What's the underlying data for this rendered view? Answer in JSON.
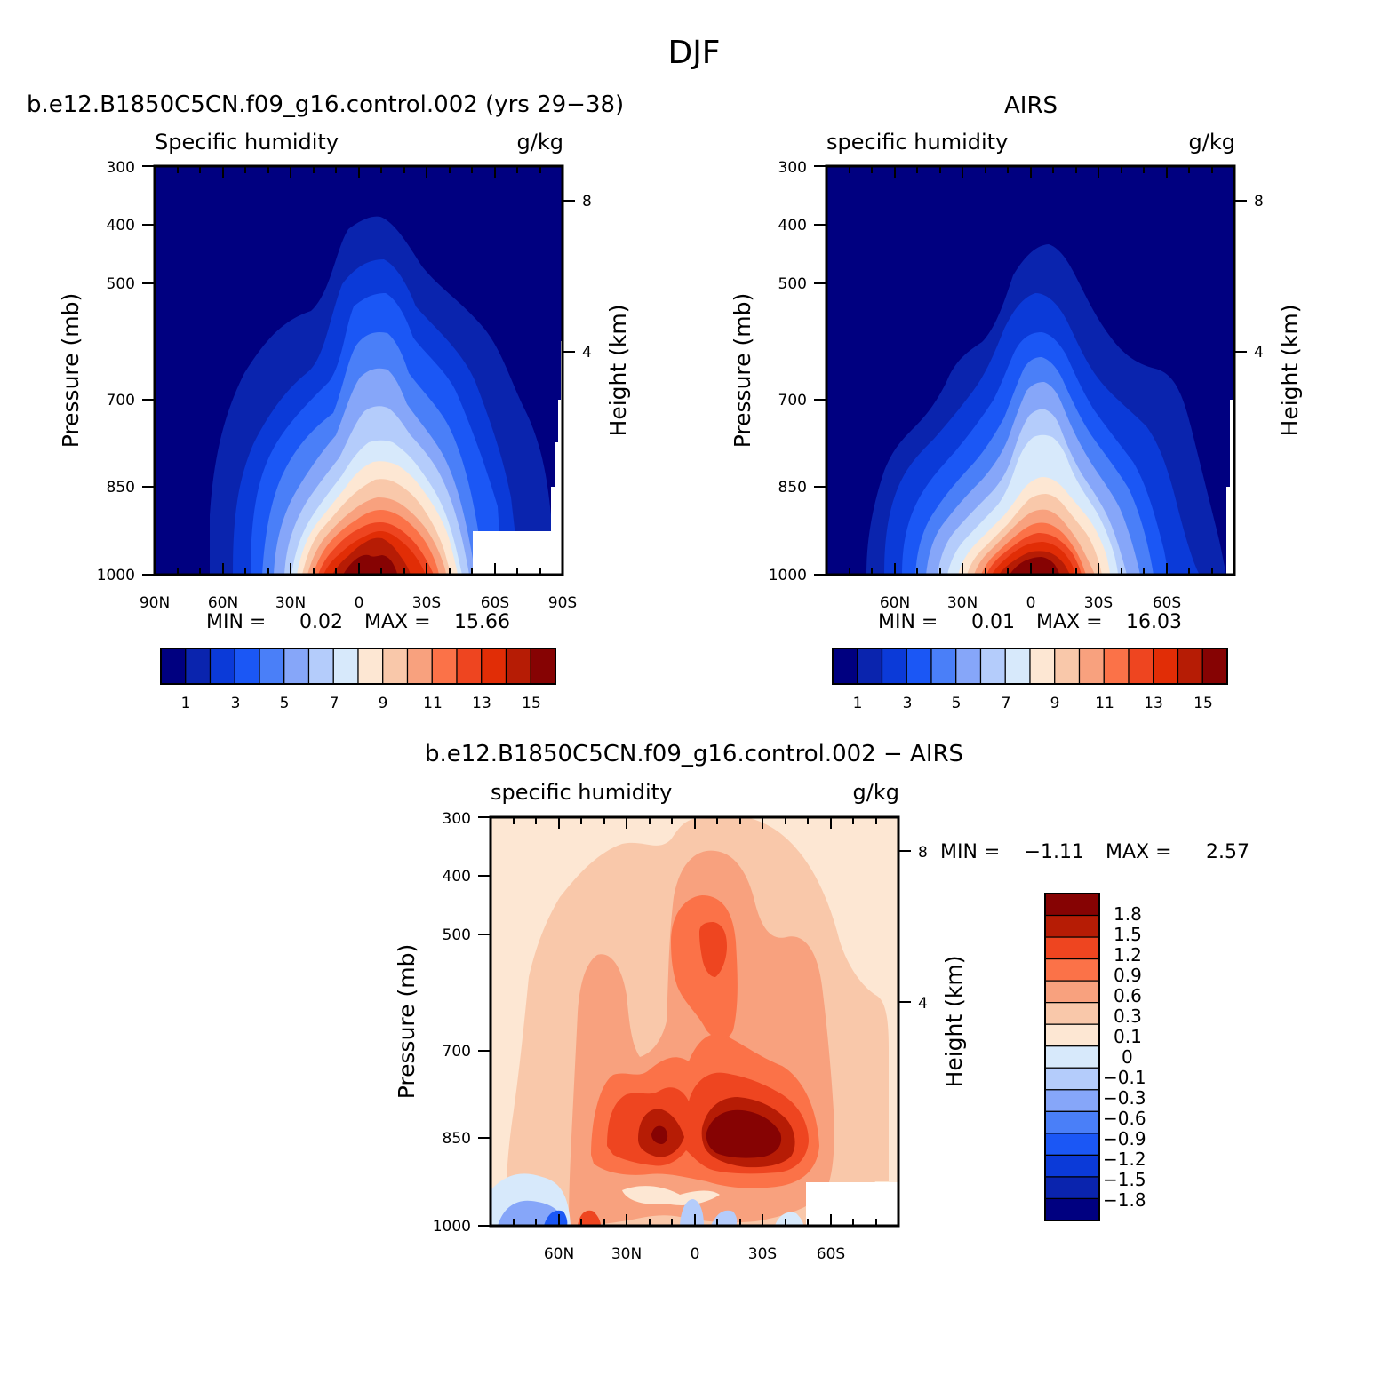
{
  "figure": {
    "title": "DJF"
  },
  "colors": {
    "absolute": [
      "#000080",
      "#0a24ae",
      "#0b3ad8",
      "#1b57f5",
      "#4a7ff8",
      "#86a6f9",
      "#b4ccfb",
      "#d7e9fb",
      "#fde7d3",
      "#f9c8aa",
      "#f8a17e",
      "#fb7248",
      "#ee4520",
      "#e12d06",
      "#b61c05",
      "#860303"
    ],
    "difference": [
      "#000080",
      "#0a24ae",
      "#0b3ad8",
      "#1b57f5",
      "#4a7ff8",
      "#86a6f9",
      "#b4ccfb",
      "#d7e9fb",
      "#fde7d3",
      "#f9c8aa",
      "#f8a17e",
      "#fb7248",
      "#ee4520",
      "#b61c05",
      "#860303"
    ]
  },
  "panels": [
    {
      "id": "model",
      "title": "b.e12.B1850C5CN.f09_g16.control.002 (yrs 29−38)",
      "var_label": "Specific humidity",
      "units": "g/kg",
      "ylabel": "Pressure (mb)",
      "y2label": "Height (km)",
      "yticks": [
        "300",
        "400",
        "500",
        "700",
        "850",
        "1000"
      ],
      "xticks": [
        "90N",
        "60N",
        "30N",
        "0",
        "30S",
        "60S",
        "90S"
      ],
      "y2ticks": [
        "8",
        "4"
      ],
      "min_label": "MIN =",
      "min_value": "0.02",
      "max_label": "MAX =",
      "max_value": "15.66",
      "colorbar_labels": [
        "1",
        "3",
        "5",
        "7",
        "9",
        "11",
        "13",
        "15"
      ]
    },
    {
      "id": "obs",
      "title": "AIRS",
      "var_label": "specific humidity",
      "units": "g/kg",
      "ylabel": "Pressure (mb)",
      "y2label": "Height (km)",
      "yticks": [
        "300",
        "400",
        "500",
        "700",
        "850",
        "1000"
      ],
      "xticks": [
        "60N",
        "30N",
        "0",
        "30S",
        "60S"
      ],
      "y2ticks": [
        "8",
        "4"
      ],
      "min_label": "MIN =",
      "min_value": "0.01",
      "max_label": "MAX =",
      "max_value": "16.03",
      "colorbar_labels": [
        "1",
        "3",
        "5",
        "7",
        "9",
        "11",
        "13",
        "15"
      ]
    },
    {
      "id": "diff",
      "title": "b.e12.B1850C5CN.f09_g16.control.002 − AIRS",
      "var_label": "specific humidity",
      "units": "g/kg",
      "ylabel": "Pressure (mb)",
      "y2label": "Height (km)",
      "yticks": [
        "300",
        "400",
        "500",
        "700",
        "850",
        "1000"
      ],
      "xticks": [
        "60N",
        "30N",
        "0",
        "30S",
        "60S"
      ],
      "y2ticks": [
        "8",
        "4"
      ],
      "min_label": "MIN =",
      "min_value": "−1.11",
      "max_label": "MAX =",
      "max_value": "2.57",
      "colorbar_labels": [
        "1.8",
        "1.5",
        "1.2",
        "0.9",
        "0.6",
        "0.3",
        "0.1",
        "0",
        "−0.1",
        "−0.3",
        "−0.6",
        "−0.9",
        "−1.2",
        "−1.5",
        "−1.8"
      ]
    }
  ],
  "chart_data": [
    {
      "type": "heatmap",
      "title": "b.e12.B1850C5CN.f09_g16.control.002 (yrs 29−38)",
      "subtitle": "Specific humidity",
      "units": "g/kg",
      "xlabel": "",
      "ylabel": "Pressure (mb)",
      "y2label": "Height (km)",
      "x_ticks": [
        "90N",
        "60N",
        "30N",
        "0",
        "30S",
        "60S",
        "90S"
      ],
      "y_ticks": [
        300,
        400,
        500,
        700,
        850,
        1000
      ],
      "y_scale": "log (pressure)",
      "contour_levels": [
        1,
        2,
        3,
        4,
        5,
        6,
        7,
        8,
        9,
        10,
        11,
        12,
        13,
        14,
        15
      ],
      "level_top_pressure_by_latitude": {
        "latitudes": [
          90,
          80,
          70,
          60,
          50,
          40,
          30,
          20,
          10,
          0,
          -10,
          -20,
          -30,
          -40,
          -50,
          -60,
          -70,
          -80,
          -90
        ],
        "q_1": [
          1000,
          1000,
          960,
          820,
          700,
          610,
          580,
          510,
          430,
          400,
          390,
          420,
          470,
          500,
          560,
          600,
          660,
          740,
          850
        ],
        "q_4": [
          1000,
          1000,
          1000,
          1000,
          900,
          800,
          720,
          640,
          560,
          520,
          510,
          540,
          600,
          650,
          710,
          780,
          880,
          1000,
          1000
        ],
        "q_9": [
          1000,
          1000,
          1000,
          1000,
          1000,
          1000,
          1000,
          900,
          800,
          770,
          780,
          830,
          920,
          1000,
          1000,
          1000,
          1000,
          1000,
          1000
        ],
        "q_15": [
          1000,
          1000,
          1000,
          1000,
          1000,
          1000,
          1000,
          1000,
          960,
          940,
          950,
          990,
          1000,
          1000,
          1000,
          1000,
          1000,
          1000,
          1000
        ]
      },
      "min": 0.02,
      "max": 15.66
    },
    {
      "type": "heatmap",
      "title": "AIRS",
      "subtitle": "specific humidity",
      "units": "g/kg",
      "ylabel": "Pressure (mb)",
      "y2label": "Height (km)",
      "x_ticks": [
        "60N",
        "30N",
        "0",
        "30S",
        "60S"
      ],
      "y_ticks": [
        300,
        400,
        500,
        700,
        850,
        1000
      ],
      "contour_levels": [
        1,
        2,
        3,
        4,
        5,
        6,
        7,
        8,
        9,
        10,
        11,
        12,
        13,
        14,
        15
      ],
      "level_top_pressure_by_latitude": {
        "latitudes": [
          90,
          80,
          70,
          60,
          50,
          40,
          30,
          20,
          10,
          0,
          -10,
          -20,
          -30,
          -40,
          -50,
          -60,
          -70,
          -80,
          -90
        ],
        "q_1": [
          1000,
          1000,
          940,
          810,
          720,
          650,
          590,
          540,
          470,
          440,
          450,
          490,
          540,
          590,
          640,
          680,
          780,
          900,
          1000
        ],
        "q_4": [
          1000,
          1000,
          1000,
          1000,
          960,
          860,
          770,
          680,
          600,
          570,
          580,
          620,
          690,
          760,
          840,
          930,
          1000,
          1000,
          1000
        ],
        "q_9": [
          1000,
          1000,
          1000,
          1000,
          1000,
          1000,
          1000,
          960,
          880,
          850,
          870,
          930,
          1000,
          1000,
          1000,
          1000,
          1000,
          1000,
          1000
        ],
        "q_15": [
          1000,
          1000,
          1000,
          1000,
          1000,
          1000,
          1000,
          1000,
          990,
          980,
          990,
          1000,
          1000,
          1000,
          1000,
          1000,
          1000,
          1000,
          1000
        ]
      },
      "min": 0.01,
      "max": 16.03
    },
    {
      "type": "heatmap",
      "title": "b.e12.B1850C5CN.f09_g16.control.002 − AIRS",
      "subtitle": "specific humidity",
      "units": "g/kg",
      "ylabel": "Pressure (mb)",
      "y2label": "Height (km)",
      "x_ticks": [
        "60N",
        "30N",
        "0",
        "30S",
        "60S"
      ],
      "y_ticks": [
        300,
        400,
        500,
        700,
        850,
        1000
      ],
      "contour_levels": [
        -1.8,
        -1.5,
        -1.2,
        -0.9,
        -0.6,
        -0.3,
        -0.1,
        0,
        0.1,
        0.3,
        0.6,
        0.9,
        1.2,
        1.5,
        1.8
      ],
      "features": {
        "maximum_centers": [
          {
            "lat": -20,
            "pressure": 850,
            "value": 2.57
          },
          {
            "lat": 15,
            "pressure": 850,
            "value": 1.9
          },
          {
            "lat": 8,
            "pressure": 570,
            "value": 1.3
          }
        ],
        "minimum_center": {
          "lat": 60,
          "pressure": 990,
          "value": -1.11
        }
      },
      "min": -1.11,
      "max": 2.57
    }
  ]
}
